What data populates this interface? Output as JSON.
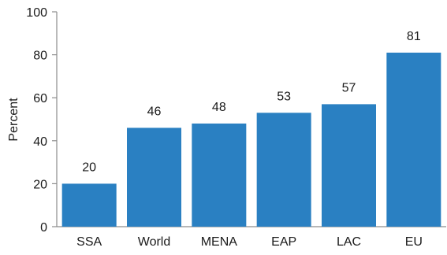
{
  "chart_data": {
    "type": "bar",
    "title": "",
    "xlabel": "",
    "ylabel": "Percent",
    "ylim": [
      0,
      100
    ],
    "yticks": [
      0,
      20,
      40,
      60,
      80,
      100
    ],
    "grid": false,
    "categories": [
      "SSA",
      "World",
      "MENA",
      "EAP",
      "LAC",
      "EU"
    ],
    "values": [
      20,
      46,
      48,
      53,
      57,
      81
    ],
    "data_labels": [
      "20",
      "46",
      "48",
      "53",
      "57",
      "81"
    ],
    "bar_color": "#2a80c2",
    "axis_color": "#8c8c8c"
  }
}
